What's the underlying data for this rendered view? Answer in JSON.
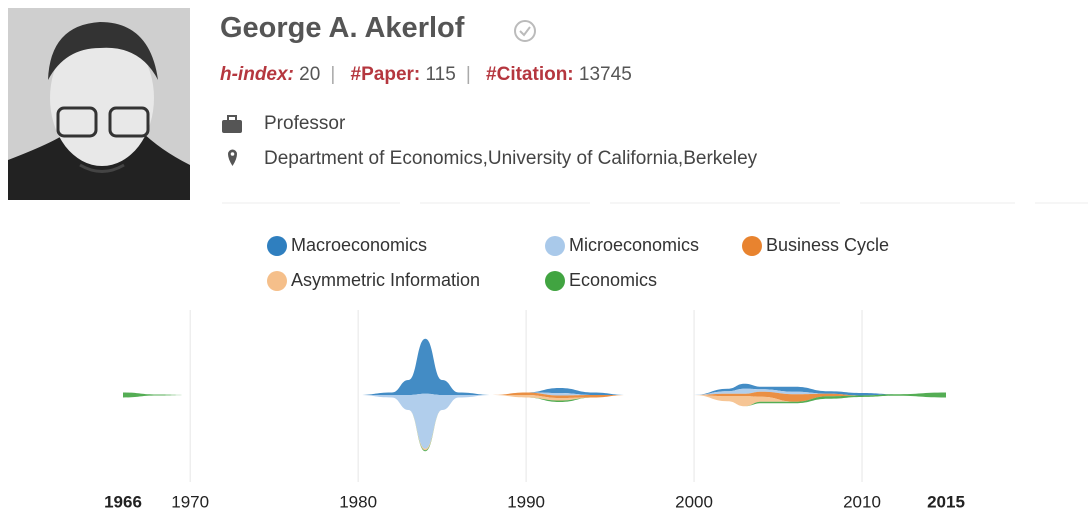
{
  "profile": {
    "name": "George A. Akerlof",
    "stats": [
      {
        "label": "h-index:",
        "value": 20
      },
      {
        "label": "#Paper:",
        "value": 115
      },
      {
        "label": "#Citation:",
        "value": 13745
      }
    ],
    "position": "Professor",
    "affiliation": "Department of Economics,University of California,Berkeley"
  },
  "chart_data": {
    "type": "stream",
    "x": [
      1966,
      1968,
      1970,
      1980,
      1982,
      1983,
      1984,
      1985,
      1986,
      1988,
      1990,
      1992,
      1994,
      1996,
      1998,
      2000,
      2002,
      2003,
      2004,
      2006,
      2008,
      2010,
      2012,
      2015
    ],
    "series": [
      {
        "name": "Macroeconomics",
        "color": "#2f7fbf",
        "values": [
          0,
          0,
          0,
          0,
          0.5,
          3,
          11,
          3,
          0.5,
          0,
          0,
          1,
          0.5,
          0,
          0,
          0,
          0.5,
          1,
          0.5,
          1,
          0.5,
          0.5,
          0,
          0
        ]
      },
      {
        "name": "Microeconomics",
        "color": "#a9c9ea",
        "values": [
          0,
          0,
          0,
          0,
          0.5,
          3,
          11,
          3,
          0.5,
          0,
          0,
          0.5,
          0,
          0,
          0,
          0,
          0.5,
          1,
          0.5,
          0.5,
          0,
          0,
          0,
          0
        ]
      },
      {
        "name": "Business Cycle",
        "color": "#e8832f",
        "values": [
          0,
          0,
          0,
          0,
          0,
          0,
          0,
          0,
          0,
          0,
          0.5,
          0.5,
          0.5,
          0,
          0,
          0,
          0.5,
          0.5,
          1,
          1.5,
          0.5,
          0,
          0,
          0
        ]
      },
      {
        "name": "Asymmetric Information",
        "color": "#f5bf8a",
        "values": [
          0,
          0,
          0,
          0,
          0,
          0,
          0.3,
          0,
          0,
          0,
          0.5,
          0.5,
          0,
          0,
          0,
          0,
          1,
          2,
          1,
          0,
          0,
          0,
          0,
          0
        ]
      },
      {
        "name": "Economics",
        "color": "#41a441",
        "values": [
          1,
          0.2,
          0,
          0,
          0,
          0,
          0.2,
          0,
          0,
          0,
          0,
          0.3,
          0,
          0,
          0,
          0,
          0,
          0,
          0.3,
          0.3,
          0.5,
          0.3,
          0.3,
          1
        ]
      }
    ],
    "xlim": [
      1966,
      2015
    ],
    "xticks": [
      1966,
      1970,
      1980,
      1990,
      2000,
      2010,
      2015
    ],
    "grid": true
  }
}
